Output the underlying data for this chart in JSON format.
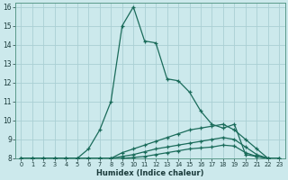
{
  "xlabel": "Humidex (Indice chaleur)",
  "bg_color": "#cce9ec",
  "grid_color": "#aacfd4",
  "line_color": "#1a6b5a",
  "xlim": [
    -0.5,
    23.5
  ],
  "ylim": [
    8,
    16.2
  ],
  "xticks": [
    0,
    1,
    2,
    3,
    4,
    5,
    6,
    7,
    8,
    9,
    10,
    11,
    12,
    13,
    14,
    15,
    16,
    17,
    18,
    19,
    20,
    21,
    22,
    23
  ],
  "yticks": [
    8,
    9,
    10,
    11,
    12,
    13,
    14,
    15,
    16
  ],
  "lines": [
    {
      "x": [
        0,
        1,
        2,
        3,
        4,
        5,
        6,
        7,
        8,
        9,
        10,
        11,
        12,
        13,
        14,
        15,
        16,
        17,
        18,
        19,
        20,
        21,
        22,
        23
      ],
      "y": [
        8,
        8,
        8,
        8,
        8,
        8,
        8.5,
        9.5,
        11,
        15,
        16,
        14.2,
        14.1,
        12.2,
        12.1,
        11.5,
        10.5,
        9.8,
        9.6,
        9.8,
        8.2,
        8.1,
        8,
        8
      ]
    },
    {
      "x": [
        0,
        1,
        2,
        3,
        4,
        5,
        6,
        7,
        8,
        9,
        10,
        11,
        12,
        13,
        14,
        15,
        16,
        17,
        18,
        19,
        20,
        21,
        22,
        23
      ],
      "y": [
        8,
        8,
        8,
        8,
        8,
        8,
        8,
        8,
        8,
        8.3,
        8.5,
        8.7,
        8.9,
        9.1,
        9.3,
        9.5,
        9.6,
        9.7,
        9.8,
        9.5,
        9.0,
        8.5,
        8,
        8
      ]
    },
    {
      "x": [
        0,
        1,
        2,
        3,
        4,
        5,
        6,
        7,
        8,
        9,
        10,
        11,
        12,
        13,
        14,
        15,
        16,
        17,
        18,
        19,
        20,
        21,
        22,
        23
      ],
      "y": [
        8,
        8,
        8,
        8,
        8,
        8,
        8,
        8,
        8,
        8.1,
        8.2,
        8.35,
        8.5,
        8.6,
        8.7,
        8.8,
        8.9,
        9.0,
        9.1,
        9.0,
        8.6,
        8.2,
        8,
        8
      ]
    },
    {
      "x": [
        0,
        1,
        2,
        3,
        4,
        5,
        6,
        7,
        8,
        9,
        10,
        11,
        12,
        13,
        14,
        15,
        16,
        17,
        18,
        19,
        20,
        21,
        22,
        23
      ],
      "y": [
        8,
        8,
        8,
        8,
        8,
        8,
        8,
        8,
        8,
        8,
        8.05,
        8.1,
        8.2,
        8.3,
        8.4,
        8.5,
        8.55,
        8.6,
        8.7,
        8.65,
        8.3,
        8.1,
        8,
        7.9
      ]
    }
  ]
}
